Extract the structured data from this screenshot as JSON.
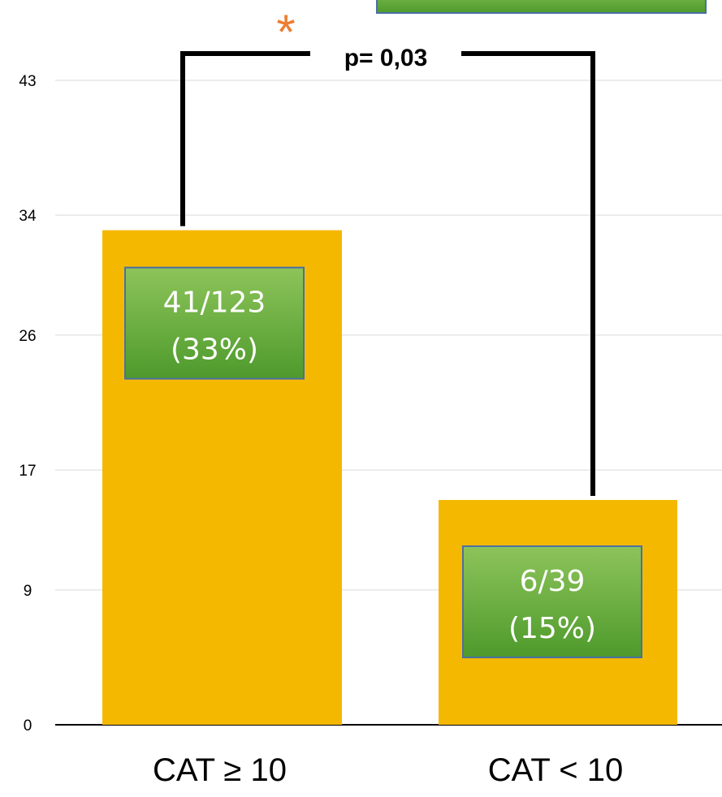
{
  "chart_data": {
    "type": "bar",
    "categories": [
      "CAT ≥ 10",
      "CAT < 10"
    ],
    "values": [
      33,
      15
    ],
    "data_labels": [
      [
        "41/123",
        "(33%)"
      ],
      [
        "6/39",
        "(15%)"
      ]
    ],
    "y_ticks": [
      "0",
      "9",
      "17",
      "26",
      "34",
      "43"
    ],
    "ylim": [
      0,
      47
    ],
    "grid": true,
    "significance": {
      "marker": "*",
      "label": "p= 0,03"
    },
    "colors": {
      "bar": "#F5B800",
      "label_box": "#6AAA3A",
      "label_box_border": "#4A6FA5",
      "marker": "#ED7D31",
      "grid": "#D9D9D9",
      "axis": "#000000"
    },
    "title": "",
    "xlabel": "",
    "ylabel": ""
  }
}
